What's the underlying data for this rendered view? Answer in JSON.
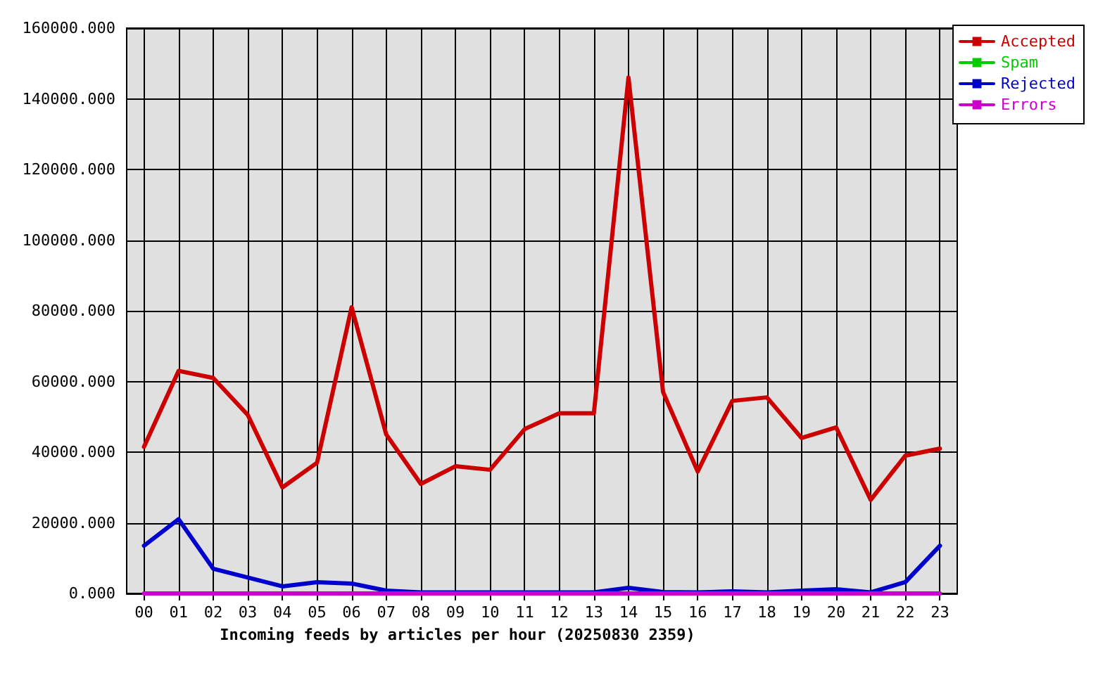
{
  "chart_data": {
    "type": "line",
    "xlabel": "Incoming feeds by articles per hour (20250830 2359)",
    "categories": [
      "00",
      "01",
      "02",
      "03",
      "04",
      "05",
      "06",
      "07",
      "08",
      "09",
      "10",
      "11",
      "12",
      "13",
      "14",
      "15",
      "16",
      "17",
      "18",
      "19",
      "20",
      "21",
      "22",
      "23"
    ],
    "series": [
      {
        "name": "Accepted",
        "color": "#cc0000",
        "values": [
          41500,
          63000,
          61000,
          50500,
          30000,
          37000,
          81000,
          45000,
          31000,
          36000,
          35000,
          46500,
          51000,
          51000,
          146000,
          57000,
          34500,
          54500,
          55500,
          44000,
          47000,
          26500,
          39000,
          41000
        ]
      },
      {
        "name": "Spam",
        "color": "#00cc00",
        "values": [
          null,
          null,
          null,
          null,
          null,
          null,
          null,
          null,
          null,
          null,
          null,
          null,
          null,
          null,
          null,
          null,
          null,
          null,
          null,
          null,
          null,
          null,
          null,
          null
        ]
      },
      {
        "name": "Rejected",
        "color": "#0000cc",
        "values": [
          13500,
          21000,
          7000,
          4500,
          2000,
          3200,
          2800,
          800,
          300,
          300,
          300,
          300,
          300,
          300,
          1600,
          400,
          300,
          600,
          300,
          800,
          1200,
          300,
          3200,
          13500
        ]
      },
      {
        "name": "Errors",
        "color": "#cc00cc",
        "values": [
          0,
          0,
          0,
          0,
          0,
          0,
          0,
          0,
          0,
          0,
          0,
          0,
          0,
          0,
          0,
          0,
          0,
          0,
          0,
          0,
          0,
          0,
          0,
          0
        ]
      }
    ],
    "ylim": [
      0,
      160000
    ],
    "yticks": [
      {
        "value": 0,
        "label": "0.000"
      },
      {
        "value": 20000,
        "label": "20000.000"
      },
      {
        "value": 40000,
        "label": "40000.000"
      },
      {
        "value": 60000,
        "label": "60000.000"
      },
      {
        "value": 80000,
        "label": "80000.000"
      },
      {
        "value": 100000,
        "label": "100000.000"
      },
      {
        "value": 120000,
        "label": "120000.000"
      },
      {
        "value": 140000,
        "label": "140000.000"
      },
      {
        "value": 160000,
        "label": "160000.000"
      }
    ],
    "grid": true,
    "legend": "top right"
  }
}
